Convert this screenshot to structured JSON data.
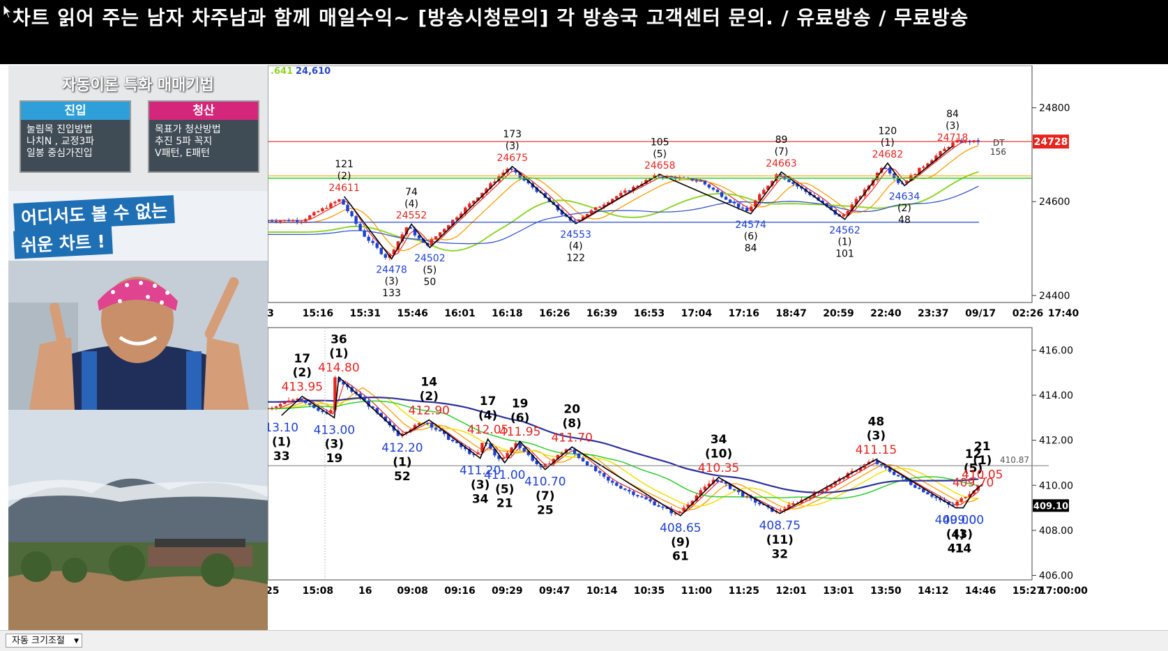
{
  "title": "차트 읽어 주는 남자 차주남과 함께 매일수익~ [방송시청문의] 각 방송국 고객센터 문의. / 유료방송 / 무료방송",
  "webcam": {
    "edu_title": "자동이론 특화 매매기법",
    "entry": {
      "head": "진입",
      "lines": [
        "눌림목 진입방법",
        "나치N , 교정3파",
        "일봉 중심가진입"
      ]
    },
    "exit": {
      "head": "청산",
      "lines": [
        "목표가 청산방법",
        "추진 5파 꼭지",
        "V패턴, E패턴"
      ]
    },
    "banner_line1": "어디서도 볼 수 없는",
    "banner_line2": "쉬운 차트 !"
  },
  "bottom": {
    "auto_size": "자동 크기조절"
  },
  "colors": {
    "up": "#e8231e",
    "down": "#1d3fd8",
    "high_label": "#e8231e",
    "low_label": "#1d3fd8",
    "accent_box": "#e8231e"
  },
  "chart_data": [
    {
      "type": "candlestick",
      "ma_labels": [
        ".641",
        "24,610"
      ],
      "x_ticks": [
        "3",
        "15:16",
        "15:31",
        "15:46",
        "16:01",
        "16:18",
        "16:26",
        "16:39",
        "16:53",
        "17:04",
        "17:16",
        "18:47",
        "20:59",
        "22:40",
        "23:37",
        "09/17",
        "02:26",
        "17:40"
      ],
      "y_ticks": [
        "24800",
        "24600",
        "24400"
      ],
      "ylim": [
        24385,
        24890
      ],
      "current_price": "24728",
      "dt_label": "DT",
      "dt_value": "156",
      "pivots": [
        {
          "kind": "high",
          "value": 24611,
          "wave": "(2)",
          "count": "121",
          "x": 0.1
        },
        {
          "kind": "low",
          "value": 24478,
          "wave": "(3)",
          "count": "133",
          "x": 0.162
        },
        {
          "kind": "high",
          "value": 24552,
          "wave": "(4)",
          "count": "74",
          "x": 0.188
        },
        {
          "kind": "low",
          "value": 24502,
          "wave": "(5)",
          "count": "50",
          "x": 0.212
        },
        {
          "kind": "high",
          "value": 24675,
          "wave": "(3)",
          "count": "173",
          "x": 0.32
        },
        {
          "kind": "low",
          "value": 24553,
          "wave": "(4)",
          "count": "122",
          "x": 0.403
        },
        {
          "kind": "high",
          "value": 24658,
          "wave": "(5)",
          "count": "105",
          "x": 0.513
        },
        {
          "kind": "low",
          "value": 24574,
          "wave": "(6)",
          "count": "84",
          "x": 0.632
        },
        {
          "kind": "high",
          "value": 24663,
          "wave": "(7)",
          "count": "89",
          "x": 0.672
        },
        {
          "kind": "low",
          "value": 24562,
          "wave": "(1)",
          "count": "101",
          "x": 0.755
        },
        {
          "kind": "high",
          "value": 24682,
          "wave": "(1)",
          "count": "120",
          "x": 0.811
        },
        {
          "kind": "low",
          "value": 24634,
          "wave": "(2)",
          "count": "48",
          "x": 0.833
        },
        {
          "kind": "high",
          "value": 24718,
          "wave": "(3)",
          "count": "84",
          "x": 0.896
        }
      ],
      "series_shape": [
        0.05,
        24560,
        0.1,
        24605,
        0.13,
        24530,
        0.162,
        24478,
        0.188,
        24548,
        0.212,
        24505,
        0.26,
        24580,
        0.32,
        24672,
        0.36,
        24620,
        0.403,
        24555,
        0.46,
        24610,
        0.513,
        24655,
        0.57,
        24645,
        0.632,
        24578,
        0.672,
        24660,
        0.72,
        24610,
        0.755,
        24565,
        0.79,
        24630,
        0.811,
        24680,
        0.833,
        24636,
        0.87,
        24685,
        0.896,
        24718,
        0.905,
        24728
      ]
    },
    {
      "type": "candlestick",
      "x_ticks": [
        ":25",
        "15:08",
        "16",
        "09:08",
        "09:16",
        "09:29",
        "09:47",
        "10:14",
        "10:35",
        "11:00",
        "11:25",
        "12:01",
        "13:01",
        "13:50",
        "14:12",
        "14:46",
        "15:27",
        "17:00:00"
      ],
      "y_ticks": [
        "416.00",
        "414.00",
        "412.00",
        "410.00",
        "408.00",
        "406.00"
      ],
      "ylim": [
        405.8,
        417.0
      ],
      "ref_line": "410.87",
      "current_price": "409.10",
      "pivots": [
        {
          "kind": "low",
          "value": "13.10",
          "wave": "(1)",
          "count": "33",
          "x": 0.018
        },
        {
          "kind": "high",
          "value": "413.95",
          "wave": "(2)",
          "count": "17",
          "x": 0.045
        },
        {
          "kind": "low",
          "value": "413.00",
          "wave": "(3)",
          "count": "19",
          "x": 0.087
        },
        {
          "kind": "high",
          "value": "414.80",
          "wave": "(1)",
          "count": "36",
          "x": 0.093
        },
        {
          "kind": "low",
          "value": "412.20",
          "wave": "(1)",
          "count": "52",
          "x": 0.176
        },
        {
          "kind": "high",
          "value": "412.90",
          "wave": "(2)",
          "count": "14",
          "x": 0.211
        },
        {
          "kind": "low",
          "value": "411.20",
          "wave": "(3)",
          "count": "34",
          "x": 0.278
        },
        {
          "kind": "high",
          "value": "412.05",
          "wave": "(4)",
          "count": "17",
          "x": 0.288
        },
        {
          "kind": "low",
          "value": "411.00",
          "wave": "(5)",
          "count": "21",
          "x": 0.31
        },
        {
          "kind": "high",
          "value": "411.95",
          "wave": "(6)",
          "count": "19",
          "x": 0.33
        },
        {
          "kind": "low",
          "value": "410.70",
          "wave": "(7)",
          "count": "25",
          "x": 0.363
        },
        {
          "kind": "high",
          "value": "411.70",
          "wave": "(8)",
          "count": "20",
          "x": 0.398
        },
        {
          "kind": "low",
          "value": "408.65",
          "wave": "(9)",
          "count": "61",
          "x": 0.54
        },
        {
          "kind": "high",
          "value": "410.35",
          "wave": "(10)",
          "count": "34",
          "x": 0.59
        },
        {
          "kind": "low",
          "value": "408.75",
          "wave": "(11)",
          "count": "32",
          "x": 0.67
        },
        {
          "kind": "high",
          "value": "411.15",
          "wave": "(3)",
          "count": "48",
          "x": 0.796
        },
        {
          "kind": "low",
          "value": "409.00",
          "wave": "(4)",
          "count": "41",
          "x": 0.9
        },
        {
          "kind": "high",
          "value": "409.70",
          "wave": "(5)",
          "count": "12",
          "x": 0.923
        },
        {
          "kind": "low",
          "value": "409.00",
          "wave": "(3)",
          "count": "14",
          "x": 0.91
        },
        {
          "kind": "high",
          "value": "410.05",
          "wave": "(1)",
          "count": "21",
          "x": 0.935
        }
      ],
      "series_shape": [
        0.01,
        413.4,
        0.045,
        413.9,
        0.087,
        413.05,
        0.093,
        414.75,
        0.13,
        413.8,
        0.176,
        412.25,
        0.211,
        412.85,
        0.245,
        412.0,
        0.278,
        411.25,
        0.288,
        412.0,
        0.31,
        411.05,
        0.33,
        411.9,
        0.363,
        410.75,
        0.398,
        411.65,
        0.45,
        410.2,
        0.54,
        408.7,
        0.59,
        410.3,
        0.63,
        409.5,
        0.67,
        408.8,
        0.72,
        409.6,
        0.796,
        411.1,
        0.85,
        410.0,
        0.9,
        409.05,
        0.923,
        409.65,
        0.935,
        409.95,
        0.95,
        409.1
      ]
    }
  ]
}
